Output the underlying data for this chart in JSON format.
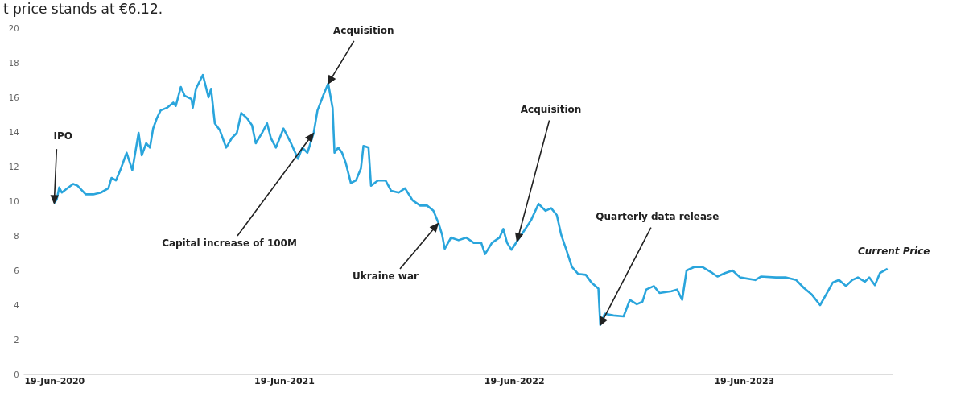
{
  "chart_data": {
    "type": "line",
    "x": [
      "2020-06-19",
      "2020-06-23",
      "2020-06-27",
      "2020-07-01",
      "2020-07-08",
      "2020-07-19",
      "2020-07-26",
      "2020-08-08",
      "2020-08-20",
      "2020-09-01",
      "2020-09-13",
      "2020-09-18",
      "2020-09-25",
      "2020-10-03",
      "2020-10-12",
      "2020-10-21",
      "2020-10-31",
      "2020-11-05",
      "2020-11-12",
      "2020-11-18",
      "2020-11-23",
      "2020-11-29",
      "2020-12-05",
      "2020-12-15",
      "2020-12-25",
      "2020-12-29",
      "2021-01-06",
      "2021-01-12",
      "2021-01-23",
      "2021-01-25",
      "2021-01-30",
      "2021-02-10",
      "2021-02-19",
      "2021-02-23",
      "2021-03-01",
      "2021-03-09",
      "2021-03-19",
      "2021-03-28",
      "2021-04-05",
      "2021-04-12",
      "2021-04-21",
      "2021-04-29",
      "2021-05-05",
      "2021-05-15",
      "2021-05-23",
      "2021-05-29",
      "2021-06-06",
      "2021-06-18",
      "2021-06-30",
      "2021-07-11",
      "2021-07-18",
      "2021-07-26",
      "2021-08-05",
      "2021-08-11",
      "2021-08-20",
      "2021-08-28",
      "2021-09-04",
      "2021-09-07",
      "2021-09-13",
      "2021-09-19",
      "2021-09-25",
      "2021-10-03",
      "2021-10-11",
      "2021-10-19",
      "2021-10-23",
      "2021-10-31",
      "2021-11-04",
      "2021-11-15",
      "2021-11-27",
      "2021-12-06",
      "2021-12-18",
      "2021-12-28",
      "2022-01-09",
      "2022-01-21",
      "2022-02-01",
      "2022-02-11",
      "2022-02-19",
      "2022-02-25",
      "2022-03-01",
      "2022-03-11",
      "2022-03-23",
      "2022-04-04",
      "2022-04-16",
      "2022-04-28",
      "2022-05-04",
      "2022-05-15",
      "2022-05-27",
      "2022-06-02",
      "2022-06-08",
      "2022-06-15",
      "2022-06-24",
      "2022-07-06",
      "2022-07-16",
      "2022-07-28",
      "2022-08-08",
      "2022-08-17",
      "2022-08-26",
      "2022-09-02",
      "2022-09-10",
      "2022-09-19",
      "2022-09-29",
      "2022-10-11",
      "2022-10-20",
      "2022-10-31",
      "2022-11-03",
      "2022-11-10",
      "2022-11-24",
      "2022-12-10",
      "2022-12-20",
      "2022-12-31",
      "2023-01-09",
      "2023-01-15",
      "2023-01-27",
      "2023-02-05",
      "2023-02-24",
      "2023-03-05",
      "2023-03-13",
      "2023-03-20",
      "2023-04-01",
      "2023-04-14",
      "2023-04-30",
      "2023-05-08",
      "2023-05-20",
      "2023-06-01",
      "2023-06-13",
      "2023-07-07",
      "2023-07-16",
      "2023-08-09",
      "2023-08-24",
      "2023-09-10",
      "2023-09-22",
      "2023-10-05",
      "2023-10-18",
      "2023-10-29",
      "2023-11-07",
      "2023-11-17",
      "2023-11-28",
      "2023-12-08",
      "2023-12-17",
      "2023-12-28",
      "2024-01-04",
      "2024-01-13",
      "2024-01-21",
      "2024-02-02"
    ],
    "series": [
      {
        "color": "#2aa5dc",
        "values": [
          9.9,
          10.1,
          10.8,
          10.5,
          10.7,
          11.0,
          10.9,
          10.4,
          10.4,
          10.5,
          10.75,
          11.35,
          11.2,
          11.9,
          12.8,
          11.8,
          13.95,
          12.65,
          13.35,
          13.1,
          14.2,
          14.8,
          15.25,
          15.4,
          15.7,
          15.5,
          16.6,
          16.1,
          15.9,
          15.4,
          16.5,
          17.3,
          16.0,
          16.5,
          14.5,
          14.1,
          13.1,
          13.65,
          13.95,
          15.1,
          14.8,
          14.4,
          13.35,
          13.95,
          14.5,
          13.65,
          13.1,
          14.2,
          13.35,
          12.45,
          13.1,
          12.8,
          13.95,
          15.25,
          16.1,
          16.8,
          15.4,
          12.8,
          13.1,
          12.8,
          12.2,
          11.05,
          11.2,
          11.9,
          13.2,
          13.1,
          10.9,
          11.2,
          11.2,
          10.6,
          10.5,
          10.75,
          10.05,
          9.75,
          9.75,
          9.45,
          8.75,
          8.05,
          7.25,
          7.9,
          7.75,
          7.9,
          7.6,
          7.6,
          6.95,
          7.6,
          7.9,
          8.4,
          7.6,
          7.2,
          7.7,
          8.35,
          8.9,
          9.85,
          9.45,
          9.6,
          9.2,
          8.05,
          7.2,
          6.2,
          5.8,
          5.75,
          5.3,
          4.95,
          2.85,
          3.5,
          3.4,
          3.35,
          4.3,
          4.05,
          4.2,
          4.9,
          5.1,
          4.7,
          4.8,
          4.9,
          4.3,
          6.0,
          6.2,
          6.2,
          5.85,
          5.65,
          5.85,
          6.0,
          5.6,
          5.45,
          5.65,
          5.6,
          5.6,
          5.45,
          5.0,
          4.6,
          4.0,
          4.7,
          5.3,
          5.45,
          5.1,
          5.45,
          5.6,
          5.35,
          5.6,
          5.15,
          5.85,
          6.1
        ]
      }
    ],
    "xlim": [
      "2020-05-01",
      "2024-02-10"
    ],
    "xticks": [
      {
        "value": "2020-06-19",
        "label": "19-Jun-2020"
      },
      {
        "value": "2021-06-19",
        "label": "19-Jun-2021"
      },
      {
        "value": "2022-06-19",
        "label": "19-Jun-2022"
      },
      {
        "value": "2023-06-19",
        "label": "19-Jun-2023"
      }
    ],
    "ylim": [
      0,
      20
    ],
    "yticks": [
      0,
      2,
      4,
      6,
      8,
      10,
      12,
      14,
      16,
      18,
      20
    ],
    "annotations": [
      {
        "text": "IPO",
        "x": "2020-06-19",
        "y": 9.9
      },
      "Capital increase of 100M",
      {
        "text": "Acquisition",
        "x": "2021-08-28",
        "y": 16.8
      },
      "Ukraine war",
      {
        "text": "Acquisition",
        "x": "2022-06-24",
        "y": 7.7
      },
      {
        "text": "Quarterly data release",
        "x": "2022-11-03",
        "y": 2.85
      },
      {
        "text": "Current Price",
        "x": "2024-02-02",
        "y": 6.1
      },
      "t price stands at €6.12."
    ]
  }
}
